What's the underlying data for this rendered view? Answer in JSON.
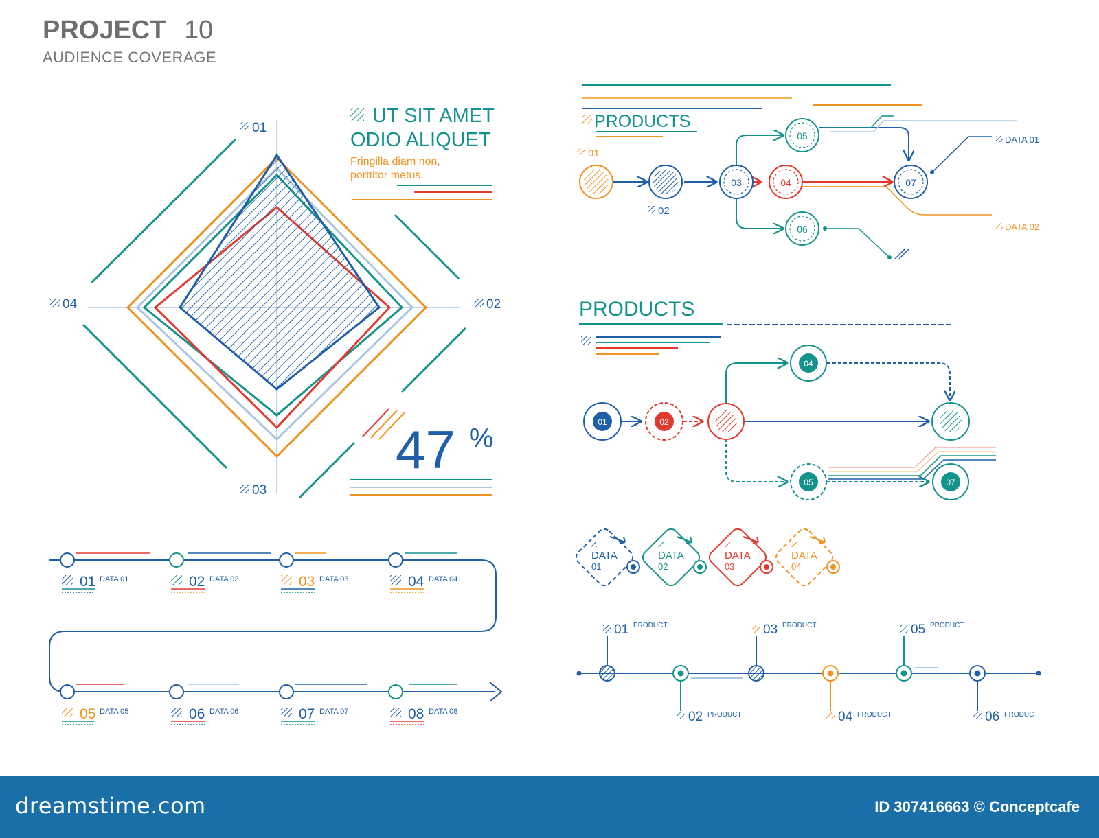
{
  "header": {
    "title_bold": "PROJECT",
    "title_num": "10",
    "subtitle": "AUDIENCE COVERAGE"
  },
  "colors": {
    "blue": "#1f5ea8",
    "teal": "#14928c",
    "orange": "#ef9320",
    "red": "#e23a2e",
    "light": "#a9c6e0",
    "grey": "#777777"
  },
  "radar": {
    "axis_labels": [
      "01",
      "02",
      "03",
      "04"
    ],
    "heading_line1": "UT SIT AMET",
    "heading_line2": "ODIO ALIQUET",
    "text_line1": "Fringilla diam non,",
    "text_line2": "porttitor metus.",
    "percent_value": "47",
    "percent_sign": "%"
  },
  "flow1": {
    "title": "PRODUCTS",
    "node_labels": [
      "05",
      "03",
      "04",
      "07",
      "06"
    ],
    "label_01": "01",
    "label_02": "02",
    "data_labels": [
      "DATA 01",
      "DATA 02"
    ]
  },
  "flow2": {
    "title": "PRODUCTS",
    "node_labels": [
      "01",
      "02",
      "04",
      "05",
      "07"
    ]
  },
  "data_badges": [
    {
      "label": "DATA",
      "num": "01"
    },
    {
      "label": "DATA",
      "num": "02"
    },
    {
      "label": "DATA",
      "num": "03"
    },
    {
      "label": "DATA",
      "num": "04"
    }
  ],
  "timeline_products": [
    {
      "num": "01",
      "label": "PRODUCT"
    },
    {
      "num": "02",
      "label": "PRODUCT"
    },
    {
      "num": "03",
      "label": "PRODUCT"
    },
    {
      "num": "04",
      "label": "PRODUCT"
    },
    {
      "num": "05",
      "label": "PRODUCT"
    },
    {
      "num": "06",
      "label": "PRODUCT"
    }
  ],
  "snake_steps": [
    {
      "num": "01",
      "label": "DATA 01"
    },
    {
      "num": "02",
      "label": "DATA 02"
    },
    {
      "num": "03",
      "label": "DATA 03"
    },
    {
      "num": "04",
      "label": "DATA 04"
    },
    {
      "num": "05",
      "label": "DATA 05"
    },
    {
      "num": "06",
      "label": "DATA 06"
    },
    {
      "num": "07",
      "label": "DATA 07"
    },
    {
      "num": "08",
      "label": "DATA 08"
    }
  ],
  "footer": {
    "site": "dreamstime.com",
    "credit": "ID 307416663 © Conceptcafe"
  }
}
